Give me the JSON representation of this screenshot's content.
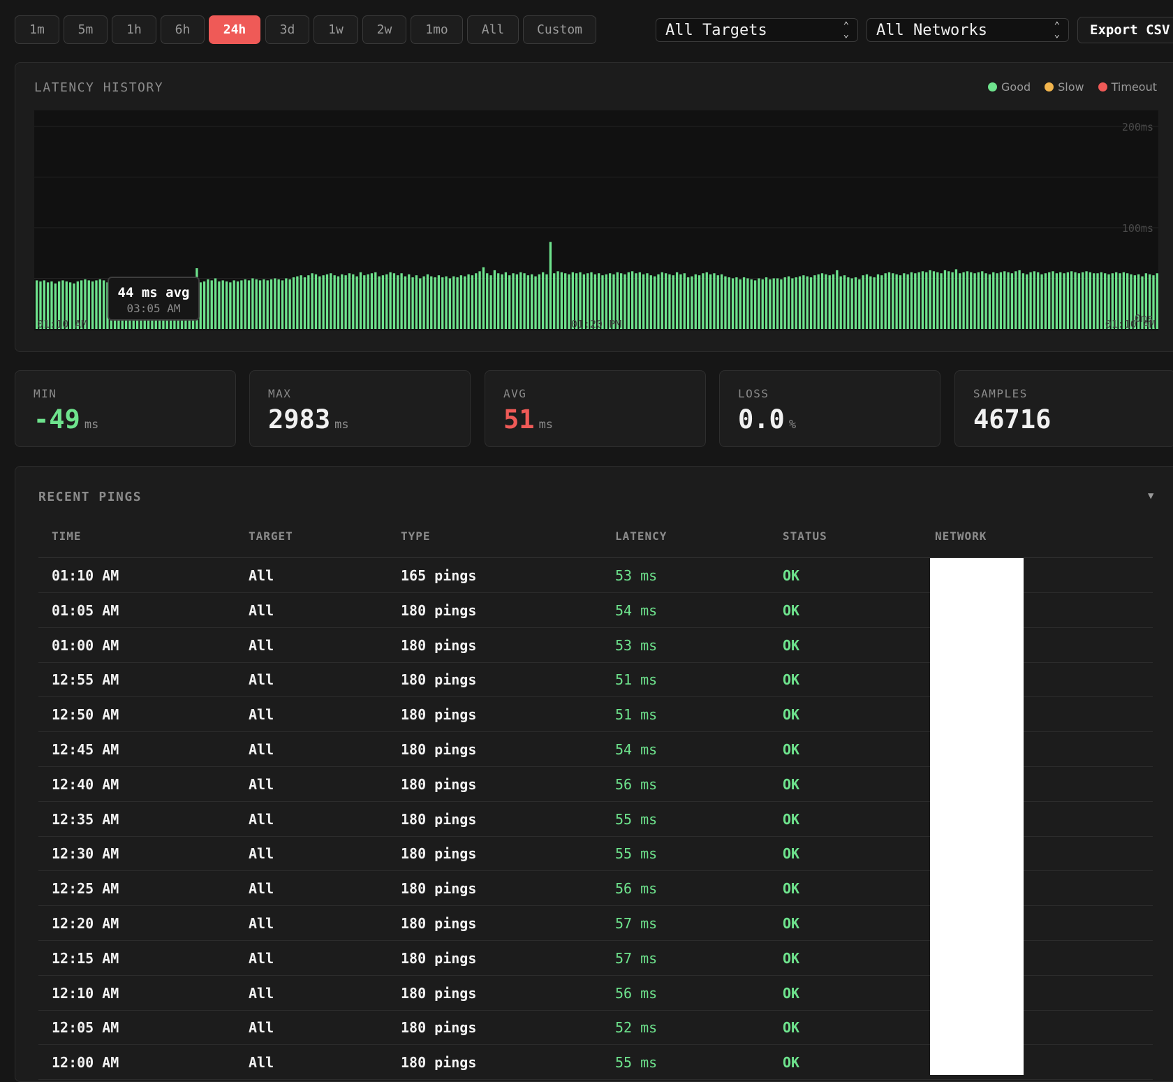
{
  "toolbar": {
    "ranges": [
      "1m",
      "5m",
      "1h",
      "6h",
      "24h",
      "3d",
      "1w",
      "2w",
      "1mo",
      "All",
      "Custom"
    ],
    "active_range": "24h",
    "target_select": "All Targets",
    "network_select": "All Networks",
    "export_label": "Export CSV"
  },
  "chart": {
    "title": "LATENCY HISTORY",
    "legend": [
      {
        "label": "Good",
        "color": "#6ee38d"
      },
      {
        "label": "Slow",
        "color": "#f2b54d"
      },
      {
        "label": "Timeout",
        "color": "#ef5a57"
      }
    ],
    "y_labels": [
      "200ms",
      "100ms",
      "0ms"
    ],
    "x_labels": [
      "01:10 AM",
      "01:20 PM",
      "01:10 AM"
    ],
    "tooltip_value": "44 ms avg",
    "tooltip_time": "03:05 AM"
  },
  "chart_data": {
    "type": "bar",
    "title": "LATENCY HISTORY",
    "xlabel": "",
    "ylabel": "",
    "ylim": [
      0,
      200
    ],
    "y_ticks": [
      0,
      100,
      200
    ],
    "grid": true,
    "legend_position": "top-right",
    "x_tick_labels": [
      "01:10 AM",
      "01:20 PM",
      "01:10 AM"
    ],
    "values": [
      48,
      47,
      48,
      46,
      47,
      45,
      47,
      48,
      47,
      46,
      45,
      47,
      48,
      49,
      48,
      47,
      48,
      49,
      48,
      46,
      48,
      47,
      49,
      48,
      46,
      48,
      47,
      48,
      47,
      45,
      47,
      46,
      48,
      49,
      47,
      48,
      48,
      49,
      47,
      46,
      47,
      46,
      47,
      60,
      46,
      47,
      49,
      48,
      50,
      47,
      48,
      47,
      46,
      48,
      47,
      48,
      49,
      48,
      50,
      49,
      48,
      49,
      48,
      49,
      50,
      49,
      48,
      50,
      49,
      51,
      52,
      53,
      51,
      53,
      55,
      54,
      52,
      53,
      54,
      55,
      53,
      52,
      54,
      53,
      55,
      54,
      52,
      56,
      53,
      54,
      55,
      56,
      52,
      53,
      54,
      56,
      55,
      53,
      55,
      52,
      54,
      51,
      53,
      50,
      52,
      54,
      52,
      51,
      53,
      51,
      52,
      50,
      52,
      51,
      53,
      52,
      54,
      53,
      55,
      57,
      61,
      55,
      53,
      58,
      55,
      54,
      56,
      53,
      55,
      54,
      56,
      55,
      53,
      54,
      52,
      54,
      56,
      54,
      86,
      55,
      57,
      56,
      55,
      54,
      56,
      55,
      56,
      54,
      55,
      56,
      54,
      55,
      53,
      54,
      55,
      54,
      56,
      55,
      54,
      56,
      57,
      55,
      56,
      54,
      55,
      53,
      52,
      54,
      56,
      55,
      54,
      53,
      56,
      54,
      55,
      51,
      52,
      54,
      53,
      55,
      56,
      54,
      55,
      53,
      54,
      52,
      51,
      50,
      51,
      49,
      51,
      50,
      49,
      48,
      50,
      49,
      51,
      49,
      50,
      50,
      49,
      51,
      52,
      50,
      51,
      52,
      53,
      52,
      51,
      53,
      54,
      55,
      54,
      53,
      54,
      58,
      52,
      53,
      51,
      50,
      51,
      49,
      53,
      54,
      52,
      51,
      54,
      53,
      55,
      56,
      55,
      54,
      53,
      55,
      54,
      56,
      55,
      56,
      57,
      56,
      58,
      57,
      56,
      55,
      58,
      57,
      56,
      59,
      55,
      56,
      57,
      56,
      55,
      56,
      57,
      55,
      54,
      56,
      55,
      56,
      57,
      56,
      55,
      57,
      58,
      55,
      54,
      56,
      57,
      56,
      54,
      55,
      56,
      57,
      55,
      56,
      55,
      56,
      57,
      56,
      55,
      56,
      57,
      56,
      55,
      55,
      56,
      55,
      54,
      55,
      56,
      55,
      56,
      55,
      54,
      53,
      54,
      52,
      55,
      54,
      53,
      55
    ]
  },
  "stats": [
    {
      "label": "MIN",
      "value": "-49",
      "unit": "ms",
      "color": "#6ee38d"
    },
    {
      "label": "MAX",
      "value": "2983",
      "unit": "ms",
      "color": "#f1f1f1"
    },
    {
      "label": "AVG",
      "value": "51",
      "unit": "ms",
      "color": "#ef5a57"
    },
    {
      "label": "LOSS",
      "value": "0.0",
      "unit": "%",
      "color": "#f1f1f1"
    },
    {
      "label": "SAMPLES",
      "value": "46716",
      "unit": "",
      "color": "#f1f1f1"
    }
  ],
  "pings": {
    "title": "RECENT PINGS",
    "columns": [
      "TIME",
      "TARGET",
      "TYPE",
      "LATENCY",
      "STATUS",
      "NETWORK"
    ],
    "rows": [
      {
        "time": "01:10 AM",
        "target": "All",
        "type": "165 pings",
        "latency": "53 ms",
        "status": "OK"
      },
      {
        "time": "01:05 AM",
        "target": "All",
        "type": "180 pings",
        "latency": "54 ms",
        "status": "OK"
      },
      {
        "time": "01:00 AM",
        "target": "All",
        "type": "180 pings",
        "latency": "53 ms",
        "status": "OK"
      },
      {
        "time": "12:55 AM",
        "target": "All",
        "type": "180 pings",
        "latency": "51 ms",
        "status": "OK"
      },
      {
        "time": "12:50 AM",
        "target": "All",
        "type": "180 pings",
        "latency": "51 ms",
        "status": "OK"
      },
      {
        "time": "12:45 AM",
        "target": "All",
        "type": "180 pings",
        "latency": "54 ms",
        "status": "OK"
      },
      {
        "time": "12:40 AM",
        "target": "All",
        "type": "180 pings",
        "latency": "56 ms",
        "status": "OK"
      },
      {
        "time": "12:35 AM",
        "target": "All",
        "type": "180 pings",
        "latency": "55 ms",
        "status": "OK"
      },
      {
        "time": "12:30 AM",
        "target": "All",
        "type": "180 pings",
        "latency": "55 ms",
        "status": "OK"
      },
      {
        "time": "12:25 AM",
        "target": "All",
        "type": "180 pings",
        "latency": "56 ms",
        "status": "OK"
      },
      {
        "time": "12:20 AM",
        "target": "All",
        "type": "180 pings",
        "latency": "57 ms",
        "status": "OK"
      },
      {
        "time": "12:15 AM",
        "target": "All",
        "type": "180 pings",
        "latency": "57 ms",
        "status": "OK"
      },
      {
        "time": "12:10 AM",
        "target": "All",
        "type": "180 pings",
        "latency": "56 ms",
        "status": "OK"
      },
      {
        "time": "12:05 AM",
        "target": "All",
        "type": "180 pings",
        "latency": "52 ms",
        "status": "OK"
      },
      {
        "time": "12:00 AM",
        "target": "All",
        "type": "180 pings",
        "latency": "55 ms",
        "status": "OK"
      }
    ]
  }
}
